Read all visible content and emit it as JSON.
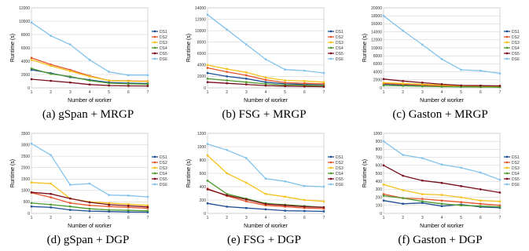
{
  "colors": {
    "DS1": "#1f4e96",
    "DS2": "#e8552b",
    "DS3": "#f5c21b",
    "DS4": "#4e9a2f",
    "DS5": "#7a0f1c",
    "DS6": "#82c3ec"
  },
  "chart_data": [
    {
      "type": "line",
      "caption": "(a) gSpan + MRGP",
      "xlabel": "Number of worker",
      "ylabel": "Runtime (s)",
      "x": [
        1,
        2,
        3,
        4,
        5,
        6,
        7
      ],
      "xlim": [
        1,
        7
      ],
      "ylim": [
        0,
        12000
      ],
      "yticks": [
        0,
        2000,
        4000,
        6000,
        8000,
        10000,
        12000
      ],
      "legend": "right",
      "series": [
        {
          "name": "DS1",
          "values": [
            2700,
            2200,
            1600,
            1200,
            800,
            700,
            650
          ]
        },
        {
          "name": "DS2",
          "values": [
            4500,
            3500,
            2700,
            1800,
            1100,
            1050,
            1000
          ]
        },
        {
          "name": "DS3",
          "values": [
            4200,
            3300,
            2500,
            1700,
            1100,
            1000,
            950
          ]
        },
        {
          "name": "DS4",
          "values": [
            2900,
            2100,
            1700,
            1100,
            700,
            600,
            550
          ]
        },
        {
          "name": "DS5",
          "values": [
            1300,
            1050,
            800,
            500,
            350,
            300,
            280
          ]
        },
        {
          "name": "DS6",
          "values": [
            9800,
            7800,
            6500,
            4200,
            2400,
            1900,
            1900
          ]
        }
      ]
    },
    {
      "type": "line",
      "caption": "(b) FSG + MRGP",
      "xlabel": "Number of worker",
      "ylabel": "Runtime (s)",
      "x": [
        1,
        2,
        3,
        4,
        5,
        6,
        7
      ],
      "xlim": [
        1,
        7
      ],
      "ylim": [
        0,
        14000
      ],
      "yticks": [
        0,
        2000,
        4000,
        6000,
        8000,
        10000,
        12000,
        14000
      ],
      "legend": "right",
      "series": [
        {
          "name": "DS1",
          "values": [
            2600,
            2000,
            1600,
            1000,
            700,
            600,
            500
          ]
        },
        {
          "name": "DS2",
          "values": [
            3500,
            2800,
            2200,
            1400,
            900,
            800,
            700
          ]
        },
        {
          "name": "DS3",
          "values": [
            4000,
            3300,
            2700,
            1800,
            1300,
            1200,
            1000
          ]
        },
        {
          "name": "DS4",
          "values": [
            1600,
            1300,
            1000,
            700,
            500,
            450,
            400
          ]
        },
        {
          "name": "DS5",
          "values": [
            1000,
            800,
            600,
            400,
            300,
            250,
            200
          ]
        },
        {
          "name": "DS6",
          "values": [
            12800,
            10200,
            7600,
            5000,
            3200,
            3000,
            2600
          ]
        }
      ]
    },
    {
      "type": "line",
      "caption": "(c) Gaston + MRGP",
      "xlabel": "Number of worker",
      "ylabel": "Runtime (s)",
      "x": [
        1,
        2,
        3,
        4,
        5,
        6,
        7
      ],
      "xlim": [
        1,
        7
      ],
      "ylim": [
        0,
        20000
      ],
      "yticks": [
        0,
        2000,
        4000,
        6000,
        8000,
        10000,
        12000,
        14000,
        16000,
        18000,
        20000
      ],
      "legend": "right",
      "series": [
        {
          "name": "DS1",
          "values": [
            900,
            700,
            500,
            400,
            300,
            250,
            200
          ]
        },
        {
          "name": "DS2",
          "values": [
            1100,
            900,
            700,
            500,
            400,
            350,
            300
          ]
        },
        {
          "name": "DS3",
          "values": [
            1300,
            1100,
            900,
            700,
            500,
            450,
            400
          ]
        },
        {
          "name": "DS4",
          "values": [
            600,
            500,
            400,
            300,
            250,
            200,
            150
          ]
        },
        {
          "name": "DS5",
          "values": [
            2200,
            1700,
            1300,
            900,
            600,
            550,
            500
          ]
        },
        {
          "name": "DS6",
          "values": [
            18000,
            14300,
            10800,
            7200,
            4500,
            4300,
            3600
          ]
        }
      ]
    },
    {
      "type": "line",
      "caption": "(d) gSpan + DGP",
      "xlabel": "Number of worker",
      "ylabel": "Runtime (s)",
      "x": [
        1,
        2,
        3,
        4,
        5,
        6,
        7
      ],
      "xlim": [
        1,
        7
      ],
      "ylim": [
        0,
        3500
      ],
      "yticks": [
        0,
        500,
        1000,
        1500,
        2000,
        2500,
        3000,
        3500
      ],
      "legend": "right",
      "series": [
        {
          "name": "DS1",
          "values": [
            300,
            260,
            150,
            100,
            80,
            60,
            50
          ]
        },
        {
          "name": "DS2",
          "values": [
            900,
            700,
            450,
            350,
            300,
            260,
            220
          ]
        },
        {
          "name": "DS3",
          "values": [
            1350,
            1300,
            650,
            500,
            450,
            400,
            350
          ]
        },
        {
          "name": "DS4",
          "values": [
            450,
            380,
            300,
            200,
            150,
            130,
            110
          ]
        },
        {
          "name": "DS5",
          "values": [
            920,
            850,
            650,
            480,
            380,
            330,
            280
          ]
        },
        {
          "name": "DS6",
          "values": [
            3050,
            2550,
            1250,
            1300,
            800,
            780,
            720
          ]
        }
      ]
    },
    {
      "type": "line",
      "caption": "(e) FSG + DGP",
      "xlabel": "Number of worker",
      "ylabel": "Runtime (s)",
      "x": [
        1,
        2,
        3,
        4,
        5,
        6,
        7
      ],
      "xlim": [
        1,
        7
      ],
      "ylim": [
        0,
        1200
      ],
      "yticks": [
        0,
        200,
        400,
        600,
        800,
        1000,
        1200
      ],
      "legend": "right",
      "series": [
        {
          "name": "DS1",
          "values": [
            150,
            100,
            80,
            60,
            40,
            35,
            30
          ]
        },
        {
          "name": "DS2",
          "values": [
            370,
            260,
            180,
            120,
            100,
            80,
            70
          ]
        },
        {
          "name": "DS3",
          "values": [
            870,
            600,
            460,
            290,
            250,
            200,
            180
          ]
        },
        {
          "name": "DS4",
          "values": [
            490,
            290,
            220,
            150,
            130,
            110,
            90
          ]
        },
        {
          "name": "DS5",
          "values": [
            360,
            270,
            210,
            140,
            120,
            100,
            90
          ]
        },
        {
          "name": "DS6",
          "values": [
            1040,
            950,
            830,
            520,
            480,
            410,
            400
          ]
        }
      ]
    },
    {
      "type": "line",
      "caption": "(f) Gaston + DGP",
      "xlabel": "Number of worker",
      "ylabel": "Runtime (s)",
      "x": [
        1,
        2,
        3,
        4,
        5,
        6,
        7
      ],
      "xlim": [
        1,
        7
      ],
      "ylim": [
        0,
        1000
      ],
      "yticks": [
        0,
        100,
        200,
        300,
        400,
        500,
        600,
        700,
        800,
        900,
        1000
      ],
      "legend": "right",
      "series": [
        {
          "name": "DS1",
          "values": [
            160,
            120,
            130,
            90,
            110,
            80,
            70
          ]
        },
        {
          "name": "DS2",
          "values": [
            240,
            190,
            180,
            160,
            140,
            120,
            100
          ]
        },
        {
          "name": "DS3",
          "values": [
            360,
            290,
            240,
            230,
            200,
            160,
            150
          ]
        },
        {
          "name": "DS4",
          "values": [
            220,
            190,
            150,
            120,
            100,
            90,
            80
          ]
        },
        {
          "name": "DS5",
          "values": [
            600,
            470,
            410,
            380,
            340,
            300,
            260
          ]
        },
        {
          "name": "DS6",
          "values": [
            900,
            730,
            690,
            610,
            570,
            510,
            420
          ]
        }
      ]
    }
  ]
}
